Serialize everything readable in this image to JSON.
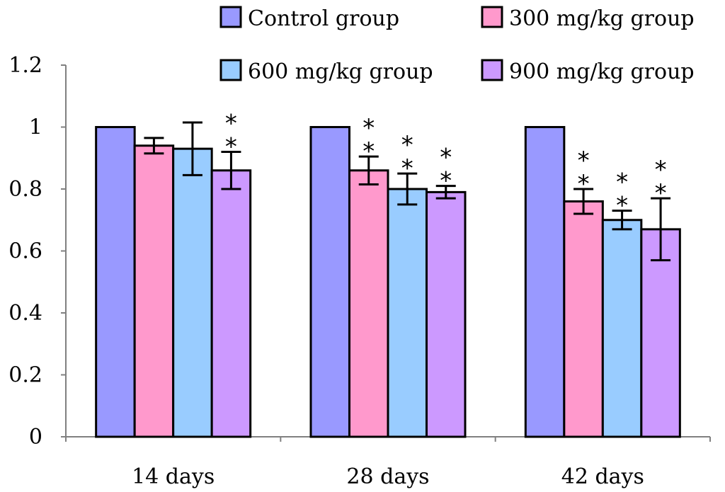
{
  "chart_data": {
    "type": "bar",
    "title": "",
    "xlabel": "",
    "ylabel": "",
    "ylim": [
      0,
      1.2
    ],
    "yticks": [
      0,
      0.2,
      0.4,
      0.6,
      0.8,
      1,
      1.2
    ],
    "ytick_labels": [
      "0",
      "0.2",
      "0.4",
      "0.6",
      "0.8",
      "1",
      "1.2"
    ],
    "categories": [
      "14 days",
      "28 days",
      "42 days"
    ],
    "series": [
      {
        "name": "Control group",
        "color": "#9999FF",
        "values": [
          1.0,
          1.0,
          1.0
        ],
        "errors": [
          0,
          0,
          0
        ],
        "significance": [
          "",
          "",
          ""
        ]
      },
      {
        "name": "300 mg/kg group",
        "color": "#FF99CC",
        "values": [
          0.94,
          0.86,
          0.76
        ],
        "errors": [
          0.025,
          0.045,
          0.04
        ],
        "significance": [
          "",
          "**",
          "**"
        ]
      },
      {
        "name": "600 mg/kg group",
        "color": "#99CCFF",
        "values": [
          0.93,
          0.8,
          0.7
        ],
        "errors": [
          0.085,
          0.05,
          0.03
        ],
        "significance": [
          "",
          "**",
          "**"
        ]
      },
      {
        "name": "900 mg/kg group",
        "color": "#CC99FF",
        "values": [
          0.86,
          0.79,
          0.67
        ],
        "errors": [
          0.06,
          0.02,
          0.1
        ],
        "significance": [
          "**",
          "**",
          "**"
        ]
      }
    ],
    "legend_position": "top-right",
    "grid": false
  }
}
